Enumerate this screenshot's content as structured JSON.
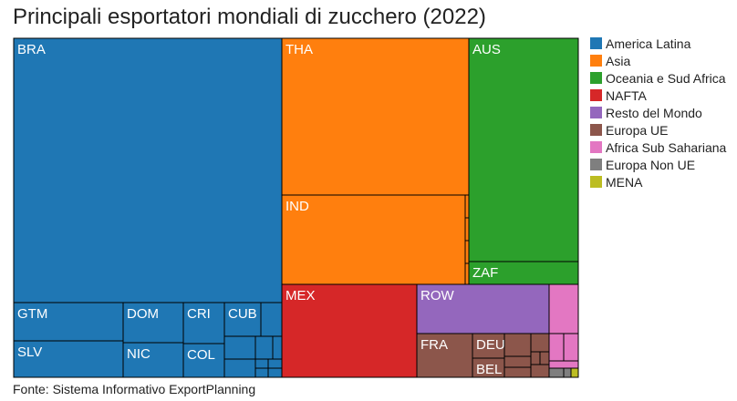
{
  "chart_data": {
    "type": "treemap",
    "title": "Principali esportatori mondiali di zucchero (2022)",
    "source": "Fonte: Sistema Informativo ExportPlanning",
    "legend_position": "right",
    "legend": [
      {
        "name": "America Latina",
        "color": "#1f77b4"
      },
      {
        "name": "Asia",
        "color": "#ff7f0e"
      },
      {
        "name": "Oceania e Sud Africa",
        "color": "#2ca02c"
      },
      {
        "name": "NAFTA",
        "color": "#d62728"
      },
      {
        "name": "Resto del Mondo",
        "color": "#9467bd"
      },
      {
        "name": "Europa UE",
        "color": "#8c564b"
      },
      {
        "name": "Africa Sub Sahariana",
        "color": "#e377c2"
      },
      {
        "name": "Europa Non UE",
        "color": "#7f7f7f"
      },
      {
        "name": "MENA",
        "color": "#bcbd22"
      }
    ],
    "tile_labels": [
      "BRA",
      "GTM",
      "SLV",
      "DOM",
      "NIC",
      "CRI",
      "COL",
      "CUB",
      "THA",
      "IND",
      "AUS",
      "ZAF",
      "MEX",
      "ROW",
      "FRA",
      "DEU",
      "BEL"
    ]
  }
}
